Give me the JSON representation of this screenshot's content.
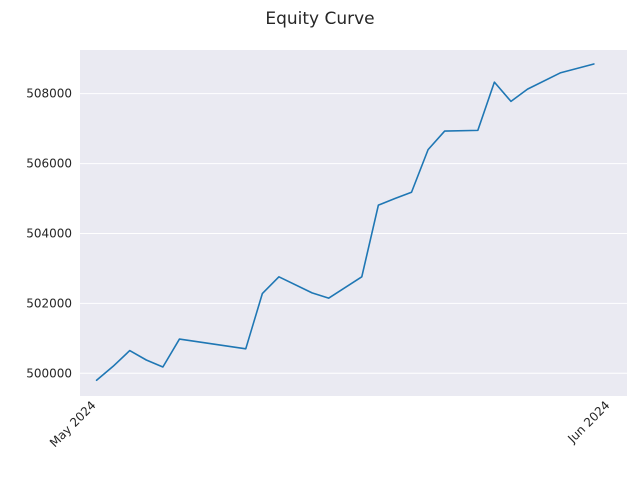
{
  "chart_data": {
    "type": "line",
    "title": "Equity Curve",
    "xlabel": "",
    "ylabel": "",
    "x_tick_labels": [
      "May 2024",
      "Jun 2024"
    ],
    "y_ticks": [
      500000,
      502000,
      504000,
      506000,
      508000
    ],
    "y_tick_labels": [
      "500000",
      "502000",
      "504000",
      "506000",
      "508000"
    ],
    "xlim": [
      "2024-04-30",
      "2024-06-02"
    ],
    "ylim": [
      499350,
      509250
    ],
    "grid": true,
    "legend": false,
    "background_color": "#eaeaf2",
    "line_color": "#1f77b4",
    "series": [
      {
        "x": [
          "2024-05-01",
          "2024-05-02",
          "2024-05-03",
          "2024-05-04",
          "2024-05-05",
          "2024-05-06",
          "2024-05-10",
          "2024-05-11",
          "2024-05-12",
          "2024-05-14",
          "2024-05-15",
          "2024-05-17",
          "2024-05-18",
          "2024-05-19",
          "2024-05-20",
          "2024-05-21",
          "2024-05-22",
          "2024-05-24",
          "2024-05-25",
          "2024-05-26",
          "2024-05-27",
          "2024-05-29",
          "2024-05-31"
        ],
        "values": [
          499800,
          500200,
          500650,
          500380,
          500180,
          500980,
          500700,
          502280,
          502760,
          502300,
          502150,
          502760,
          504810,
          505000,
          505180,
          506400,
          506930,
          506950,
          508330,
          507780,
          508130,
          508600,
          508850
        ]
      }
    ]
  }
}
